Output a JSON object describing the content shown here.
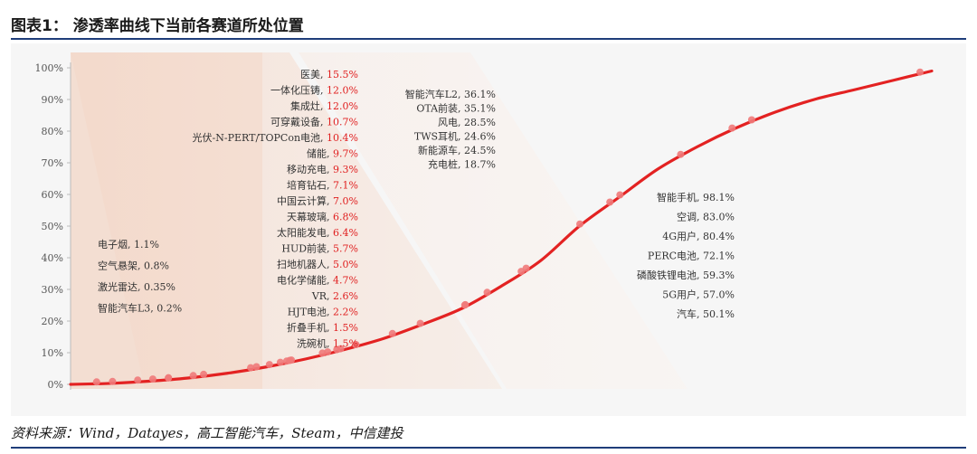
{
  "title": "图表1：  渗透率曲线下当前各赛道所处位置",
  "source": "资料来源：Wind，Datayes，高工智能汽车，Steam，中信建投",
  "colors": {
    "curve": "#e32222",
    "point": "#f07a7a",
    "highlight": "#e02020",
    "rule": "#1f3d7a"
  },
  "chart_data": {
    "type": "line",
    "ylim": [
      0,
      100
    ],
    "y_ticks": [
      "0%",
      "10%",
      "20%",
      "30%",
      "40%",
      "50%",
      "60%",
      "70%",
      "80%",
      "90%",
      "100%"
    ],
    "grid": false,
    "series": [
      {
        "values": [
          0,
          0.3,
          1,
          2,
          3.5,
          5.5,
          8,
          11,
          14.5,
          19,
          24,
          31,
          39,
          50,
          59,
          68,
          75,
          81,
          86,
          90,
          93,
          96,
          99
        ]
      }
    ],
    "points": [
      0.2,
      0.35,
      0.8,
      1.1,
      1.5,
      1.5,
      2.2,
      2.6,
      4.7,
      5.0,
      5.7,
      6.4,
      6.8,
      7.0,
      7.1,
      9.3,
      9.7,
      10.4,
      10.7,
      12.0,
      12.0,
      15.5,
      18.7,
      24.5,
      24.6,
      28.5,
      35.1,
      36.1,
      50.1,
      57.0,
      59.3,
      72.1,
      80.4,
      83.0,
      98.1
    ],
    "annotations": {
      "left": [
        {
          "name": "电子烟",
          "value": "1.1%"
        },
        {
          "name": "空气悬架",
          "value": "0.8%"
        },
        {
          "name": "激光雷达",
          "value": "0.35%"
        },
        {
          "name": "智能汽车L3",
          "value": "0.2%"
        }
      ],
      "middle": [
        {
          "name": "医美",
          "value": "15.5%"
        },
        {
          "name": "一体化压铸",
          "value": "12.0%"
        },
        {
          "name": "集成灶",
          "value": "12.0%"
        },
        {
          "name": "可穿戴设备",
          "value": "10.7%"
        },
        {
          "name": "光伏-N-PERT/TOPCon电池",
          "value": "10.4%"
        },
        {
          "name": "储能",
          "value": "9.7%"
        },
        {
          "name": "移动充电",
          "value": "9.3%"
        },
        {
          "name": "培育钻石",
          "value": "7.1%"
        },
        {
          "name": "中国云计算",
          "value": "7.0%"
        },
        {
          "name": "天幕玻璃",
          "value": "6.8%"
        },
        {
          "name": "太阳能发电",
          "value": "6.4%"
        },
        {
          "name": "HUD前装",
          "value": "5.7%"
        },
        {
          "name": "扫地机器人",
          "value": "5.0%"
        },
        {
          "name": "电化学储能",
          "value": "4.7%"
        },
        {
          "name": "VR",
          "value": "2.6%"
        },
        {
          "name": "HJT电池",
          "value": "2.2%"
        },
        {
          "name": "折叠手机",
          "value": "1.5%"
        },
        {
          "name": "洗碗机",
          "value": "1.5%"
        }
      ],
      "upper": [
        {
          "name": "智能汽车L2",
          "value": "36.1%"
        },
        {
          "name": "OTA前装",
          "value": "35.1%"
        },
        {
          "name": "风电",
          "value": "28.5%"
        },
        {
          "name": "TWS耳机",
          "value": "24.6%"
        },
        {
          "name": "新能源车",
          "value": "24.5%"
        },
        {
          "name": "充电桩",
          "value": "18.7%"
        }
      ],
      "right": [
        {
          "name": "智能手机",
          "value": "98.1%"
        },
        {
          "name": "空调",
          "value": "83.0%"
        },
        {
          "name": "4G用户",
          "value": "80.4%"
        },
        {
          "name": "PERC电池",
          "value": "72.1%"
        },
        {
          "name": "磷酸铁锂电池",
          "value": "59.3%"
        },
        {
          "name": "5G用户",
          "value": "57.0%"
        },
        {
          "name": "汽车",
          "value": "50.1%"
        }
      ]
    }
  }
}
